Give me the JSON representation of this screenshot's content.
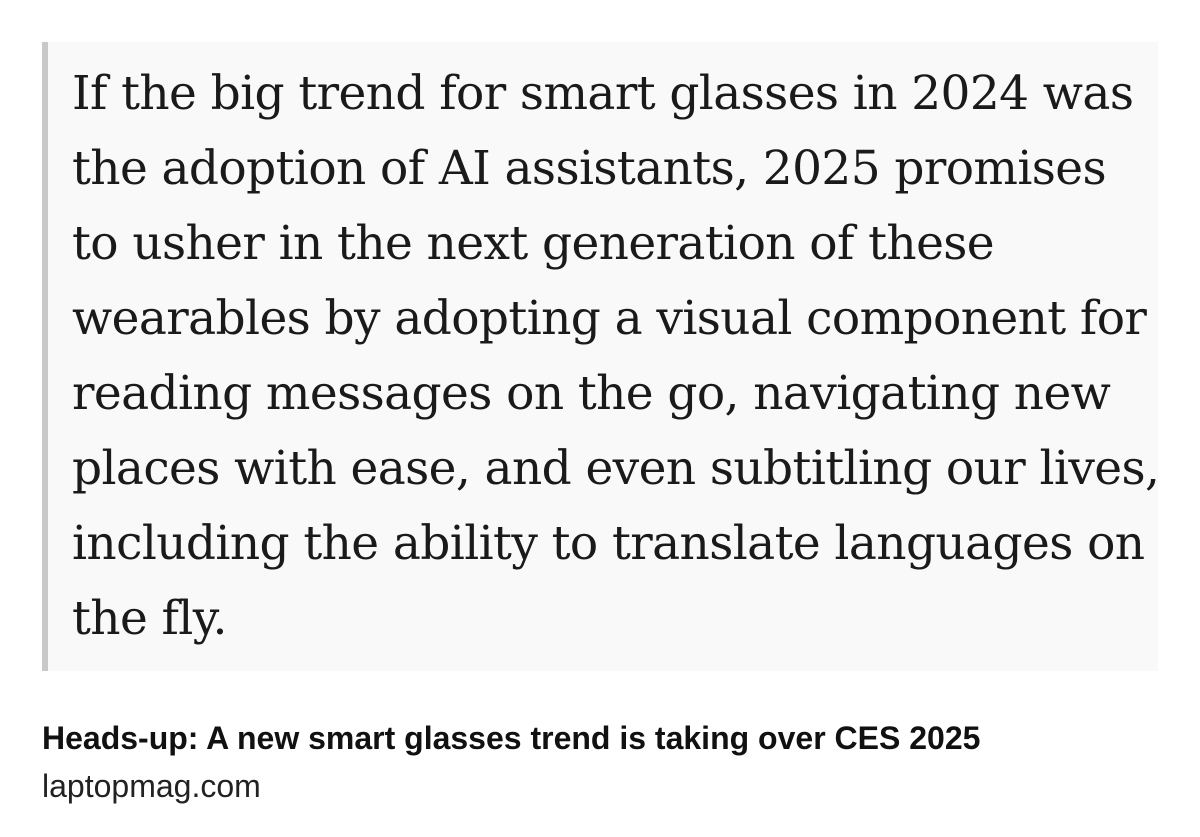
{
  "quote": {
    "lines": [
      "If the big trend for smart glasses in 2024 was",
      "the adoption of AI assistants, 2025 promises",
      "to usher in the next generation of these",
      "wearables by adopting a visual component for",
      "reading messages on the go, navigating new",
      "places with ease, and even subtitling our lives,",
      "including the ability to translate languages on",
      "the fly."
    ]
  },
  "link": {
    "title": "Heads-up: A new smart glasses trend is taking over CES 2025",
    "domain": "laptopmag.com"
  }
}
